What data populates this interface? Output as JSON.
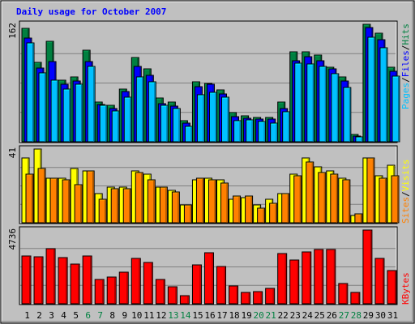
{
  "title": "Daily usage for October 2007",
  "colors": {
    "background": "#c0c0c0",
    "title": "#0000ff",
    "hits": "#008040",
    "files": "#0000ff",
    "pages": "#00c0ff",
    "visits": "#ffff00",
    "sites": "#ff8000",
    "kbytes": "#ff0000",
    "weekend_label": "#008040",
    "weekday_label": "#000000",
    "slash": "#000000"
  },
  "labels": {
    "hits": "Hits",
    "files": "Files",
    "pages": "Pages",
    "visits": "Visits",
    "sites": "Sites",
    "kbytes": "KBytes",
    "slash": "/"
  },
  "chart_data": {
    "type": "bar",
    "title": "Daily usage for October 2007",
    "categories": [
      "1",
      "2",
      "3",
      "4",
      "5",
      "6",
      "7",
      "8",
      "9",
      "10",
      "11",
      "12",
      "13",
      "14",
      "15",
      "16",
      "17",
      "18",
      "19",
      "20",
      "21",
      "22",
      "23",
      "24",
      "25",
      "26",
      "27",
      "28",
      "29",
      "30",
      "31"
    ],
    "weekend_days": [
      6,
      7,
      13,
      14,
      20,
      21,
      27,
      28
    ],
    "panels": [
      {
        "name": "hits-files-pages",
        "ymax_label": "162",
        "ymax": 162,
        "series": [
          {
            "name": "Hits",
            "values": [
              156,
              110,
              138,
              85,
              89,
              126,
              55,
              50,
              73,
              116,
              100,
              60,
              55,
              29,
              83,
              80,
              72,
              40,
              36,
              33,
              33,
              55,
              124,
              124,
              120,
              103,
              89,
              10,
              162,
              150,
              103
            ]
          },
          {
            "name": "Files",
            "values": [
              143,
              102,
              111,
              79,
              84,
              111,
              51,
              46,
              69,
              104,
              92,
              53,
              49,
              26,
              76,
              79,
              66,
              35,
              32,
              31,
              31,
              46,
              112,
              117,
              112,
              101,
              84,
              8,
              158,
              141,
              97
            ]
          },
          {
            "name": "Pages",
            "values": [
              136,
              95,
              85,
              73,
              79,
              104,
              50,
              43,
              61,
              89,
              83,
              50,
              46,
              21,
              65,
              68,
              61,
              29,
              30,
              28,
              26,
              41,
              108,
              107,
              104,
              94,
              75,
              7,
              144,
              130,
              90
            ]
          }
        ]
      },
      {
        "name": "visits-sites",
        "ymax_label": "41",
        "ymax": 41,
        "series": [
          {
            "name": "Visits",
            "values": [
              36,
              41,
              25,
              25,
              30,
              29,
              16,
              20,
              20,
              29,
              27,
              20,
              18,
              10,
              24,
              25,
              24,
              13,
              14,
              10,
              13,
              16,
              27,
              36,
              31,
              29,
              25,
              4,
              36,
              26,
              32
            ]
          },
          {
            "name": "Sites",
            "values": [
              27,
              30,
              25,
              24,
              21,
              29,
              13,
              19,
              19,
              28,
              24,
              20,
              17,
              10,
              25,
              24,
              22,
              15,
              15,
              8,
              11,
              16,
              26,
              34,
              28,
              27,
              24,
              5,
              36,
              25,
              26
            ]
          }
        ]
      },
      {
        "name": "kbytes",
        "ymax_label": "4736",
        "ymax": 4736,
        "series": [
          {
            "name": "KBytes",
            "values": [
              3090,
              3000,
              3560,
              2980,
              2550,
              3080,
              1570,
              1740,
              2010,
              2890,
              2680,
              1570,
              1110,
              540,
              2480,
              3300,
              2410,
              1170,
              750,
              780,
              1010,
              3210,
              2810,
              3350,
              3480,
              3490,
              1310,
              720,
              4736,
              2900,
              2130
            ]
          }
        ]
      }
    ]
  }
}
